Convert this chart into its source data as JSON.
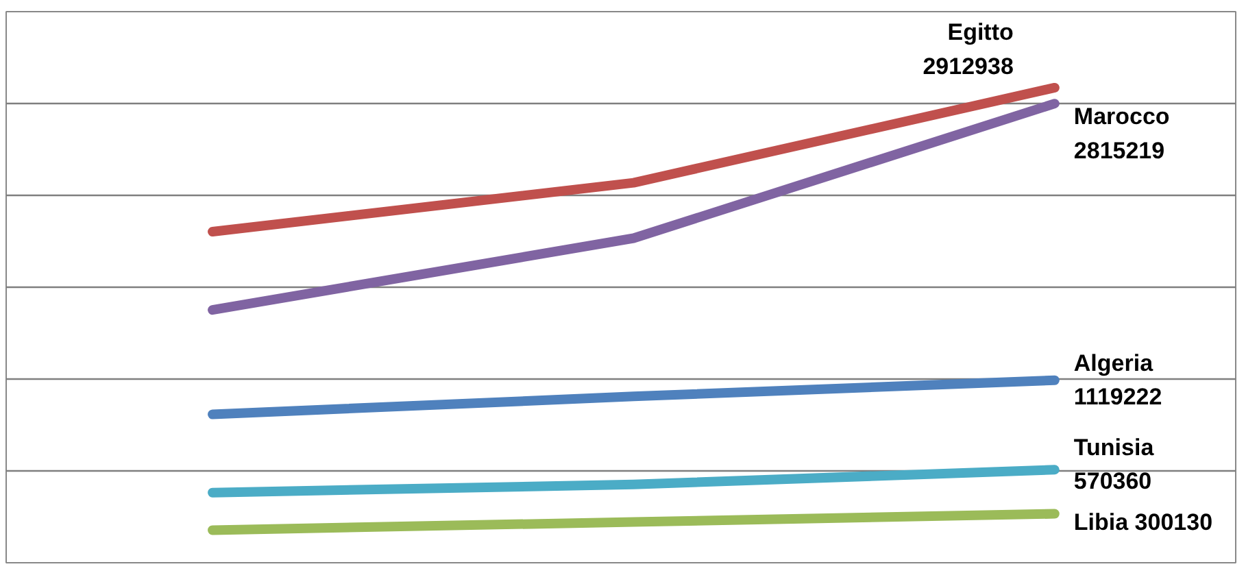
{
  "chart_data": {
    "type": "line",
    "categories": [
      null,
      null,
      null
    ],
    "tick_labels": false,
    "grid": "y",
    "marker": "none",
    "line_style": "solid",
    "series": [
      {
        "name": "Egitto",
        "color": "#c0504d",
        "values": [
          2030000,
          2330000,
          2912938
        ],
        "value_labels": [
          null,
          null,
          "2912938"
        ]
      },
      {
        "name": "Marocco",
        "color": "#8064a2",
        "values": [
          1550000,
          1990000,
          2815219
        ],
        "value_labels": [
          null,
          null,
          "2815219"
        ]
      },
      {
        "name": "Algeria",
        "color": "#4f81bd",
        "values": [
          910000,
          1020000,
          1119222
        ],
        "value_labels": [
          null,
          null,
          "1119222"
        ]
      },
      {
        "name": "Tunisia",
        "color": "#4bacc6",
        "values": [
          430000,
          480000,
          570360
        ],
        "value_labels": [
          null,
          null,
          "570360"
        ]
      },
      {
        "name": "Libia",
        "color": "#9bbb59",
        "values": [
          200000,
          250000,
          300130
        ],
        "value_labels": [
          null,
          null,
          "300130"
        ]
      }
    ]
  }
}
